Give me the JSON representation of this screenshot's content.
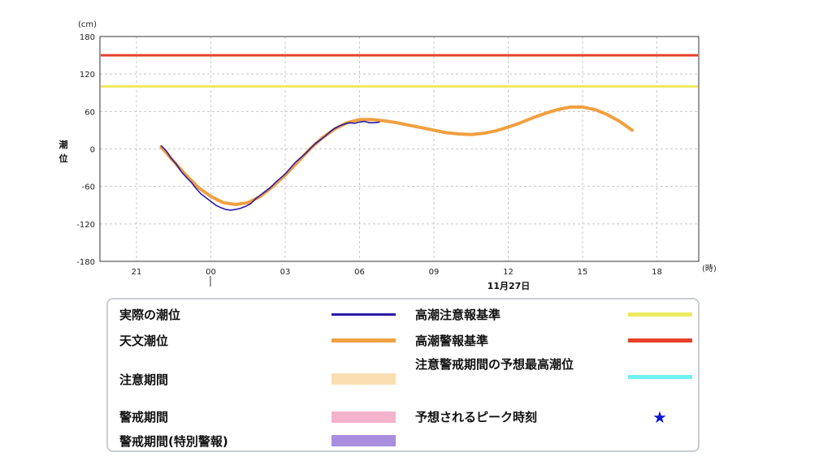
{
  "chart_data": {
    "type": "line",
    "y_unit": "(cm)",
    "ylabel": "潮位",
    "ylim": [
      -180,
      180
    ],
    "y_ticks": [
      "180",
      "120",
      "60",
      "0",
      "-60",
      "-120",
      "-180"
    ],
    "x_unit": "(時)",
    "x_ticks": [
      "21",
      "00",
      "03",
      "06",
      "09",
      "12",
      "15",
      "18"
    ],
    "date_label": "11月27日",
    "grid": true,
    "thresholds": [
      {
        "name": "高潮警報基準",
        "value": 150,
        "color": "#e8402a"
      },
      {
        "name": "高潮注意報基準",
        "value": 100,
        "color": "#eeea5e"
      }
    ],
    "series": [
      {
        "name": "天文潮位",
        "color": "#f0a040",
        "points": [
          [
            -2.0,
            3
          ],
          [
            -1.5,
            -20
          ],
          [
            -1.0,
            -42
          ],
          [
            -0.5,
            -62
          ],
          [
            0.0,
            -76
          ],
          [
            0.5,
            -86
          ],
          [
            1.0,
            -89
          ],
          [
            1.5,
            -86
          ],
          [
            2.0,
            -76
          ],
          [
            2.5,
            -60
          ],
          [
            3.0,
            -42
          ],
          [
            3.5,
            -21
          ],
          [
            4.0,
            0
          ],
          [
            4.5,
            18
          ],
          [
            5.0,
            32
          ],
          [
            5.5,
            42
          ],
          [
            6.0,
            47
          ],
          [
            6.5,
            47
          ],
          [
            7.0,
            45
          ],
          [
            7.5,
            42
          ],
          [
            8.0,
            38
          ],
          [
            8.5,
            34
          ],
          [
            9.0,
            30
          ],
          [
            9.5,
            26
          ],
          [
            10.0,
            24
          ],
          [
            10.5,
            23
          ],
          [
            11.0,
            25
          ],
          [
            11.5,
            29
          ],
          [
            12.0,
            35
          ],
          [
            12.5,
            42
          ],
          [
            13.0,
            50
          ],
          [
            13.5,
            57
          ],
          [
            14.0,
            63
          ],
          [
            14.5,
            67
          ],
          [
            15.0,
            67
          ],
          [
            15.5,
            63
          ],
          [
            16.0,
            55
          ],
          [
            16.5,
            44
          ],
          [
            17.0,
            30
          ]
        ]
      },
      {
        "name": "実際の潮位",
        "color": "#2a1aa8",
        "points": [
          [
            -2.0,
            5
          ],
          [
            -1.8,
            -3
          ],
          [
            -1.6,
            -15
          ],
          [
            -1.4,
            -24
          ],
          [
            -1.2,
            -36
          ],
          [
            -1.0,
            -45
          ],
          [
            -0.8,
            -53
          ],
          [
            -0.6,
            -63
          ],
          [
            -0.4,
            -72
          ],
          [
            -0.2,
            -78
          ],
          [
            0.0,
            -84
          ],
          [
            0.2,
            -90
          ],
          [
            0.4,
            -94
          ],
          [
            0.6,
            -97
          ],
          [
            0.8,
            -98
          ],
          [
            1.0,
            -97
          ],
          [
            1.2,
            -95
          ],
          [
            1.4,
            -92
          ],
          [
            1.6,
            -88
          ],
          [
            1.8,
            -80
          ],
          [
            2.0,
            -74
          ],
          [
            2.2,
            -68
          ],
          [
            2.4,
            -62
          ],
          [
            2.6,
            -54
          ],
          [
            2.8,
            -47
          ],
          [
            3.0,
            -40
          ],
          [
            3.2,
            -31
          ],
          [
            3.4,
            -22
          ],
          [
            3.6,
            -15
          ],
          [
            3.8,
            -8
          ],
          [
            4.0,
            0
          ],
          [
            4.2,
            8
          ],
          [
            4.4,
            14
          ],
          [
            4.6,
            20
          ],
          [
            4.8,
            27
          ],
          [
            5.0,
            33
          ],
          [
            5.2,
            37
          ],
          [
            5.4,
            40
          ],
          [
            5.6,
            42
          ],
          [
            5.8,
            41
          ],
          [
            6.0,
            43
          ],
          [
            6.2,
            44
          ],
          [
            6.4,
            42
          ],
          [
            6.6,
            42
          ],
          [
            6.8,
            43
          ]
        ]
      }
    ],
    "legend": [
      {
        "label": "実際の潮位",
        "kind": "line",
        "color": "#2a1aa8"
      },
      {
        "label": "高潮注意報基準",
        "kind": "line",
        "color": "#eeea5e"
      },
      {
        "label": "天文潮位",
        "kind": "line",
        "color": "#f0a040"
      },
      {
        "label": "高潮警報基準",
        "kind": "line",
        "color": "#e8402a"
      },
      {
        "label": "注意期間",
        "kind": "box",
        "color": "#f8deb0"
      },
      {
        "label": "注意警戒期間の予想最高潮位",
        "kind": "line",
        "color": "#6ef2f2"
      },
      {
        "label": "警戒期間",
        "kind": "box",
        "color": "#f4b2cc"
      },
      {
        "label": "予想されるピーク時刻",
        "kind": "marker",
        "symbol": "★",
        "color": "#0a14d6"
      },
      {
        "label": "警戒期間(特別警報)",
        "kind": "box",
        "color": "#a98ee0"
      }
    ]
  }
}
